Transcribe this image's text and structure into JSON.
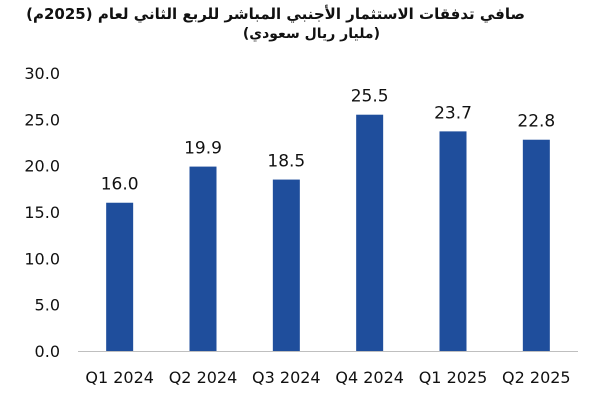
{
  "chart_data": {
    "type": "bar",
    "title": "صافي تدفقات الاستثمار الأجنبي المباشر للربع الثاني لعام (2025م)",
    "subtitle": "(مليار ريال سعودي)",
    "categories": [
      "Q1 2024",
      "Q2 2024",
      "Q3 2024",
      "Q4 2024",
      "Q1 2025",
      "Q2 2025"
    ],
    "values": [
      16.0,
      19.9,
      18.5,
      25.5,
      23.7,
      22.8
    ],
    "value_labels": [
      "16.0",
      "19.9",
      "18.5",
      "25.5",
      "23.7",
      "22.8"
    ],
    "yticks": [
      "0.0",
      "5.0",
      "10.0",
      "15.0",
      "20.0",
      "25.0",
      "30.0"
    ],
    "ylim": [
      0,
      30
    ],
    "grid": false,
    "bar_color": "#1f4e9c",
    "axis_color": "#bfbfbf"
  }
}
